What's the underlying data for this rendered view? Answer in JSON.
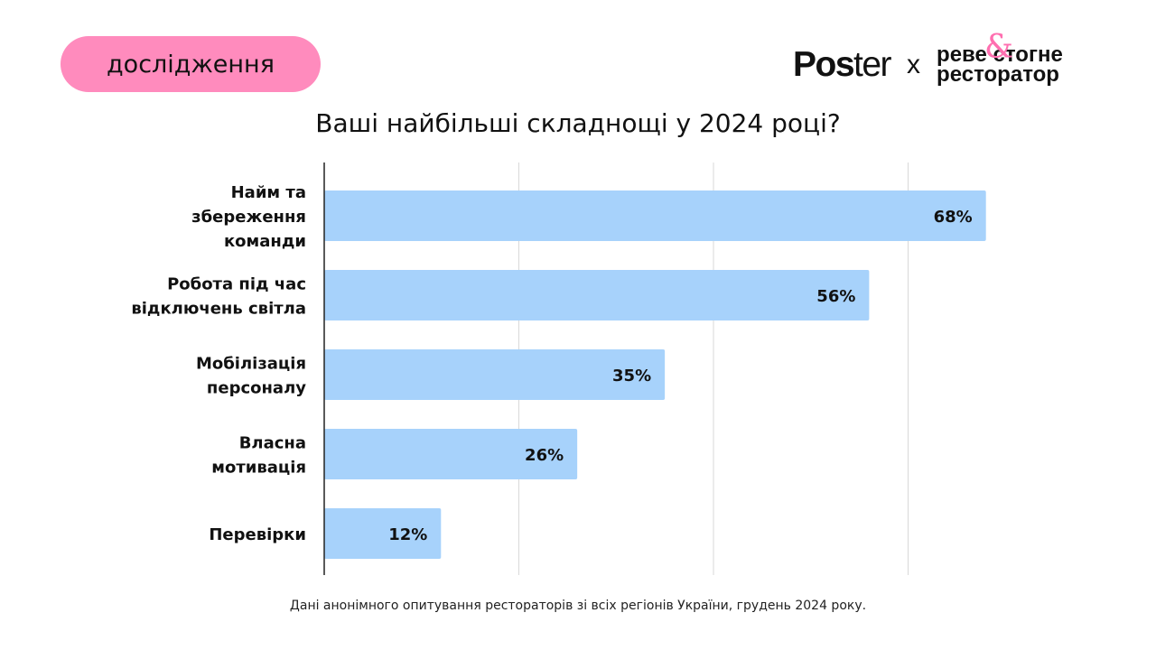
{
  "tag": {
    "label": "дослідження"
  },
  "logos": {
    "poster": {
      "bold": "Pos",
      "light": "ter"
    },
    "times": "x",
    "partner_line1": "реве стогне",
    "partner_line2": "ресторатор",
    "partner_amp": "&"
  },
  "footer": "Дані анонімного опитування рестораторів зі всіх регіонів України, грудень 2024 року.",
  "colors": {
    "bar": "#a7d2fb",
    "tag": "#ff8bbd",
    "amp": "#ff6fb0",
    "grid": "#d9d9d9"
  },
  "chart_data": {
    "type": "bar",
    "orientation": "horizontal",
    "title": "Ваші найбільші складнощі у 2024 році?",
    "categories": [
      [
        "Найм та",
        "збереження",
        "команди"
      ],
      [
        "Робота під час",
        "відключень світла"
      ],
      [
        "Мобілізація",
        "персоналу"
      ],
      [
        "Власна",
        "мотивація"
      ],
      [
        "Перевірки"
      ]
    ],
    "values": [
      68,
      56,
      35,
      26,
      12
    ],
    "value_labels": [
      "68%",
      "56%",
      "35%",
      "26%",
      "12%"
    ],
    "xlim": [
      0,
      80
    ],
    "gridlines": [
      20,
      40,
      60
    ],
    "grid": true,
    "legend": "none"
  }
}
